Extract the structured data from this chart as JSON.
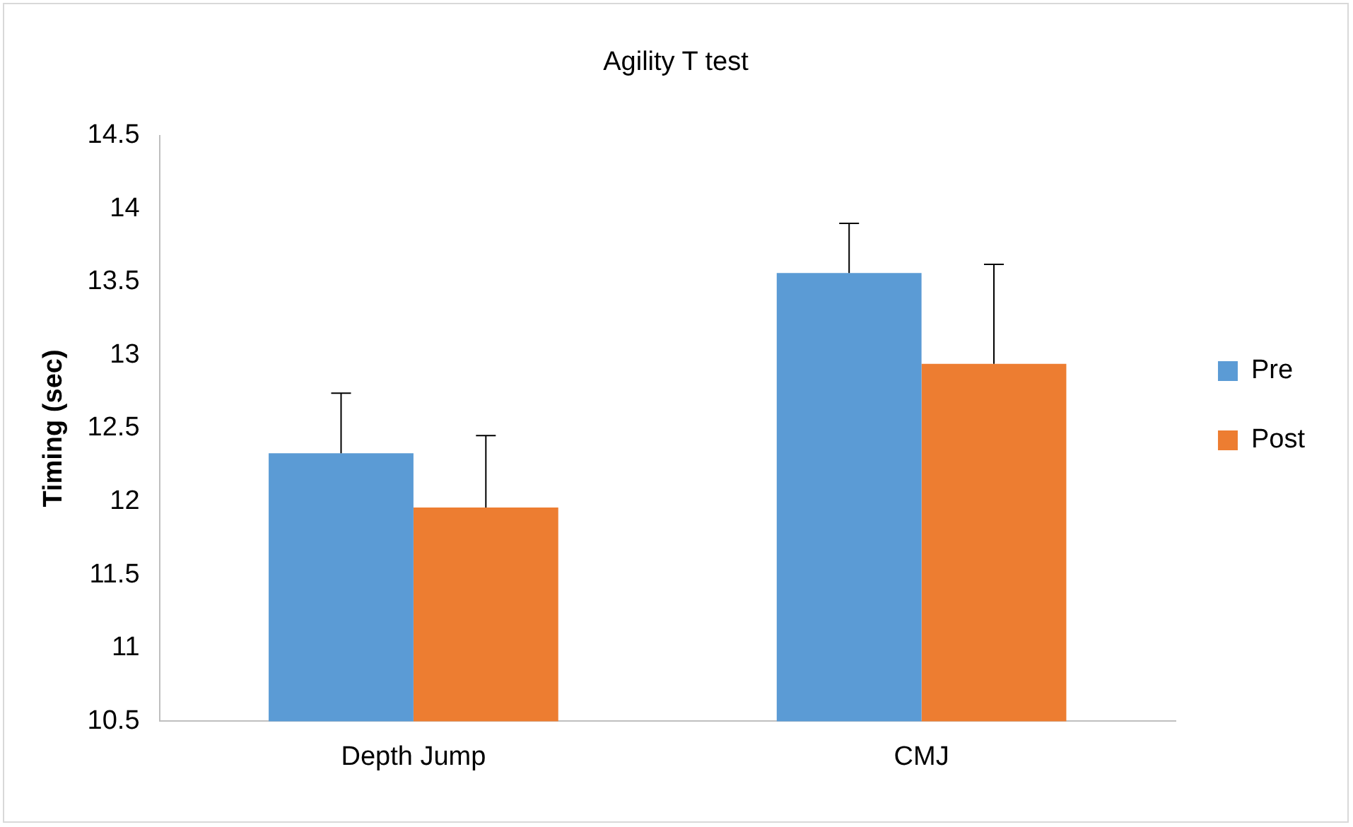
{
  "chart_data": {
    "type": "bar",
    "title": "Agility T test",
    "ylabel": "Timing (sec)",
    "categories": [
      "Depth Jump",
      "CMJ"
    ],
    "series": [
      {
        "name": "Pre",
        "color": "#5b9bd5",
        "values": [
          12.33,
          13.56
        ],
        "errors": [
          [
            12.33,
            12.74
          ],
          [
            13.56,
            13.9
          ]
        ]
      },
      {
        "name": "Post",
        "color": "#ed7d31",
        "values": [
          11.96,
          12.94
        ],
        "errors": [
          [
            11.96,
            12.45
          ],
          [
            12.94,
            13.62
          ]
        ]
      }
    ],
    "ylim": [
      10.5,
      14.5
    ],
    "yticks": [
      10.5,
      11,
      11.5,
      12,
      12.5,
      13,
      13.5,
      14,
      14.5
    ],
    "grid": false,
    "legend": "right"
  }
}
